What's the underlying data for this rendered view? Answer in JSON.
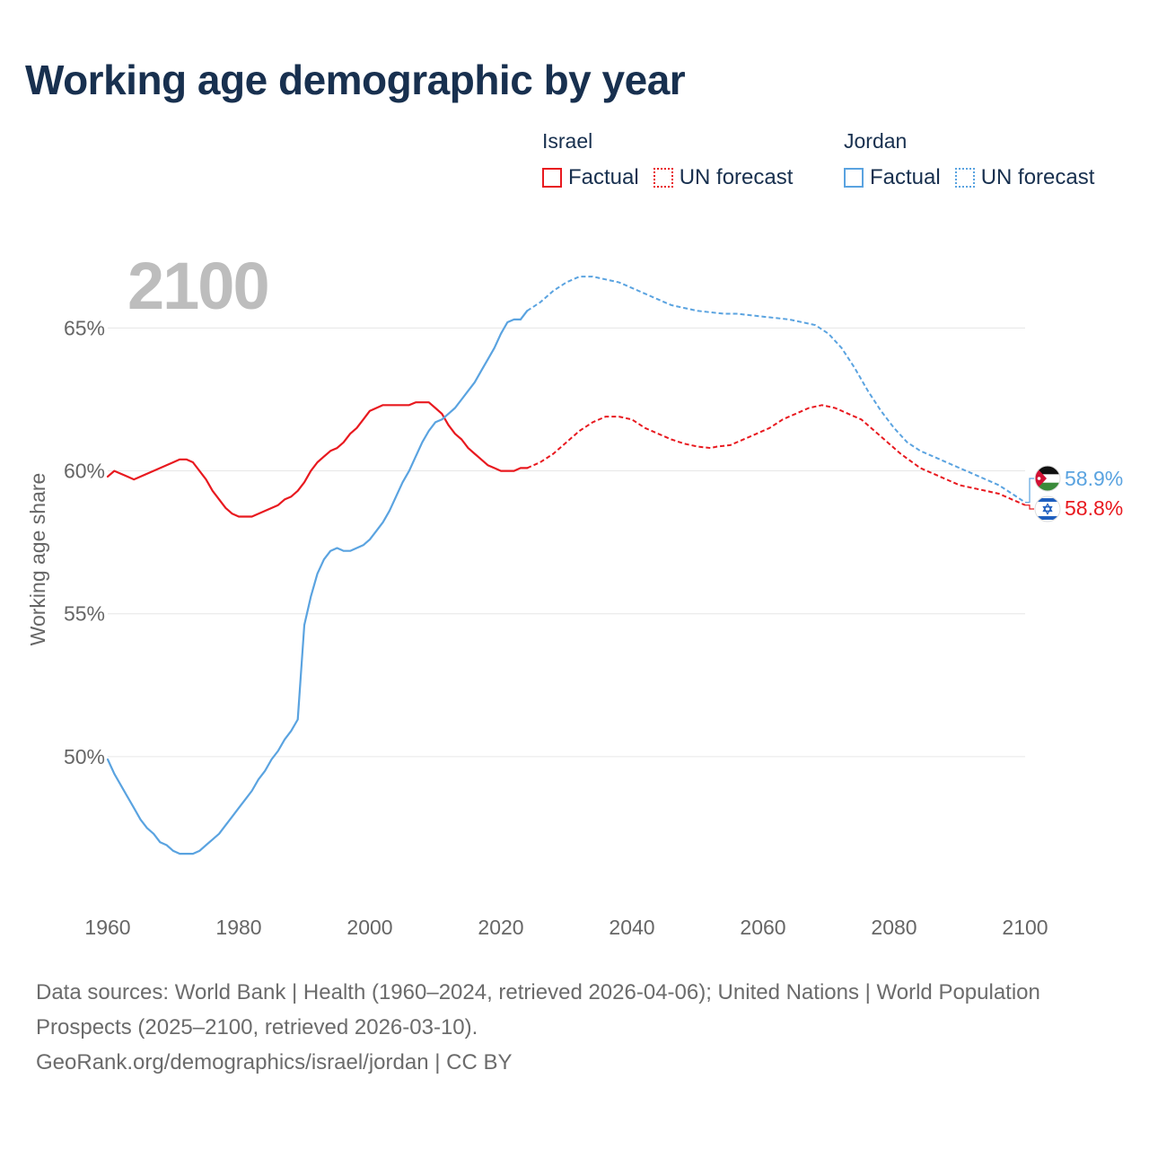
{
  "title": "Working age demographic by year",
  "legend": {
    "groups": [
      {
        "name": "Israel",
        "factual_label": "Factual",
        "forecast_label": "UN forecast",
        "color": "#e8191f"
      },
      {
        "name": "Jordan",
        "factual_label": "Factual",
        "forecast_label": "UN forecast",
        "color": "#5aa3e0"
      }
    ]
  },
  "year_watermark": "2100",
  "footer": {
    "line1": "Data sources: World Bank | Health (1960–2024, retrieved 2026-04-06); United Nations | World Population Prospects (2025–2100, retrieved 2026-03-10).",
    "line2": "GeoRank.org/demographics/israel/jordan | CC BY"
  },
  "end_labels": {
    "jordan": {
      "value": "58.9%",
      "icon": "jordan-flag-icon",
      "color": "#5aa3e0"
    },
    "israel": {
      "value": "58.8%",
      "icon": "israel-flag-icon",
      "color": "#e8191f"
    }
  },
  "chart_data": {
    "type": "line",
    "title": "Working age demographic by year",
    "xlabel": "",
    "ylabel": "Working age share",
    "xlim": [
      1960,
      2100
    ],
    "ylim": [
      45,
      68.5
    ],
    "x_ticks": [
      1960,
      1980,
      2000,
      2020,
      2040,
      2060,
      2080,
      2100
    ],
    "y_ticks": [
      50,
      55,
      60,
      65
    ],
    "y_tick_labels": [
      "50%",
      "55%",
      "60%",
      "65%"
    ],
    "grid": true,
    "series": [
      {
        "name": "Israel",
        "segment": "Factual",
        "color": "#e8191f",
        "style": "solid",
        "points": [
          [
            1960,
            59.8
          ],
          [
            1961,
            60
          ],
          [
            1962,
            59.9
          ],
          [
            1963,
            59.8
          ],
          [
            1964,
            59.7
          ],
          [
            1966,
            59.9
          ],
          [
            1968,
            60.1
          ],
          [
            1970,
            60.3
          ],
          [
            1971,
            60.4
          ],
          [
            1972,
            60.4
          ],
          [
            1973,
            60.3
          ],
          [
            1975,
            59.7
          ],
          [
            1976,
            59.3
          ],
          [
            1978,
            58.7
          ],
          [
            1979,
            58.5
          ],
          [
            1980,
            58.4
          ],
          [
            1982,
            58.4
          ],
          [
            1984,
            58.6
          ],
          [
            1986,
            58.8
          ],
          [
            1987,
            59
          ],
          [
            1988,
            59.1
          ],
          [
            1989,
            59.3
          ],
          [
            1990,
            59.6
          ],
          [
            1991,
            60
          ],
          [
            1992,
            60.3
          ],
          [
            1993,
            60.5
          ],
          [
            1994,
            60.7
          ],
          [
            1995,
            60.8
          ],
          [
            1996,
            61
          ],
          [
            1997,
            61.3
          ],
          [
            1998,
            61.5
          ],
          [
            1999,
            61.8
          ],
          [
            2000,
            62.1
          ],
          [
            2001,
            62.2
          ],
          [
            2002,
            62.3
          ],
          [
            2003,
            62.3
          ],
          [
            2006,
            62.3
          ],
          [
            2007,
            62.4
          ],
          [
            2009,
            62.4
          ],
          [
            2010,
            62.2
          ],
          [
            2011,
            62
          ],
          [
            2012,
            61.6
          ],
          [
            2013,
            61.3
          ],
          [
            2014,
            61.1
          ],
          [
            2015,
            60.8
          ],
          [
            2016,
            60.6
          ],
          [
            2017,
            60.4
          ],
          [
            2018,
            60.2
          ],
          [
            2019,
            60.1
          ],
          [
            2020,
            60
          ],
          [
            2022,
            60
          ],
          [
            2023,
            60.1
          ],
          [
            2024,
            60.1
          ]
        ]
      },
      {
        "name": "Israel",
        "segment": "UN forecast",
        "color": "#e8191f",
        "style": "dashed",
        "points": [
          [
            2024,
            60.1
          ],
          [
            2026,
            60.3
          ],
          [
            2028,
            60.6
          ],
          [
            2030,
            61
          ],
          [
            2032,
            61.4
          ],
          [
            2034,
            61.7
          ],
          [
            2036,
            61.9
          ],
          [
            2038,
            61.9
          ],
          [
            2040,
            61.8
          ],
          [
            2042,
            61.5
          ],
          [
            2044,
            61.3
          ],
          [
            2046,
            61.1
          ],
          [
            2048,
            60.95
          ],
          [
            2050,
            60.85
          ],
          [
            2052,
            60.8
          ],
          [
            2053,
            60.85
          ],
          [
            2055,
            60.9
          ],
          [
            2058,
            61.2
          ],
          [
            2061,
            61.5
          ],
          [
            2063,
            61.8
          ],
          [
            2065,
            62
          ],
          [
            2067,
            62.2
          ],
          [
            2069,
            62.3
          ],
          [
            2071,
            62.2
          ],
          [
            2073,
            62
          ],
          [
            2075,
            61.8
          ],
          [
            2077,
            61.4
          ],
          [
            2079,
            61
          ],
          [
            2081,
            60.6
          ],
          [
            2084,
            60.1
          ],
          [
            2087,
            59.8
          ],
          [
            2090,
            59.5
          ],
          [
            2093,
            59.35
          ],
          [
            2096,
            59.2
          ],
          [
            2098,
            59
          ],
          [
            2100,
            58.8
          ]
        ]
      },
      {
        "name": "Jordan",
        "segment": "Factual",
        "color": "#5aa3e0",
        "style": "solid",
        "points": [
          [
            1960,
            49.9
          ],
          [
            1961,
            49.4
          ],
          [
            1962,
            49
          ],
          [
            1963,
            48.6
          ],
          [
            1964,
            48.2
          ],
          [
            1965,
            47.8
          ],
          [
            1966,
            47.5
          ],
          [
            1967,
            47.3
          ],
          [
            1968,
            47
          ],
          [
            1969,
            46.9
          ],
          [
            1970,
            46.7
          ],
          [
            1971,
            46.6
          ],
          [
            1973,
            46.6
          ],
          [
            1974,
            46.7
          ],
          [
            1975,
            46.9
          ],
          [
            1976,
            47.1
          ],
          [
            1977,
            47.3
          ],
          [
            1978,
            47.6
          ],
          [
            1979,
            47.9
          ],
          [
            1980,
            48.2
          ],
          [
            1981,
            48.5
          ],
          [
            1982,
            48.8
          ],
          [
            1983,
            49.2
          ],
          [
            1984,
            49.5
          ],
          [
            1985,
            49.9
          ],
          [
            1986,
            50.2
          ],
          [
            1987,
            50.6
          ],
          [
            1988,
            50.9
          ],
          [
            1989,
            51.3
          ],
          [
            1990,
            54.6
          ],
          [
            1991,
            55.6
          ],
          [
            1992,
            56.4
          ],
          [
            1993,
            56.9
          ],
          [
            1994,
            57.2
          ],
          [
            1995,
            57.3
          ],
          [
            1996,
            57.2
          ],
          [
            1997,
            57.2
          ],
          [
            1998,
            57.3
          ],
          [
            1999,
            57.4
          ],
          [
            2000,
            57.6
          ],
          [
            2001,
            57.9
          ],
          [
            2002,
            58.2
          ],
          [
            2003,
            58.6
          ],
          [
            2004,
            59.1
          ],
          [
            2005,
            59.6
          ],
          [
            2006,
            60
          ],
          [
            2007,
            60.5
          ],
          [
            2008,
            61
          ],
          [
            2009,
            61.4
          ],
          [
            2010,
            61.7
          ],
          [
            2011,
            61.8
          ],
          [
            2012,
            62
          ],
          [
            2013,
            62.2
          ],
          [
            2014,
            62.5
          ],
          [
            2015,
            62.8
          ],
          [
            2016,
            63.1
          ],
          [
            2017,
            63.5
          ],
          [
            2018,
            63.9
          ],
          [
            2019,
            64.3
          ],
          [
            2020,
            64.8
          ],
          [
            2021,
            65.2
          ],
          [
            2022,
            65.3
          ],
          [
            2023,
            65.3
          ],
          [
            2024,
            65.6
          ]
        ]
      },
      {
        "name": "Jordan",
        "segment": "UN forecast",
        "color": "#5aa3e0",
        "style": "dashed",
        "points": [
          [
            2024,
            65.6
          ],
          [
            2026,
            65.9
          ],
          [
            2028,
            66.3
          ],
          [
            2030,
            66.6
          ],
          [
            2032,
            66.8
          ],
          [
            2034,
            66.8
          ],
          [
            2036,
            66.7
          ],
          [
            2038,
            66.6
          ],
          [
            2040,
            66.4
          ],
          [
            2042,
            66.2
          ],
          [
            2044,
            66
          ],
          [
            2046,
            65.8
          ],
          [
            2048,
            65.7
          ],
          [
            2050,
            65.6
          ],
          [
            2052,
            65.55
          ],
          [
            2054,
            65.5
          ],
          [
            2056,
            65.5
          ],
          [
            2058,
            65.45
          ],
          [
            2060,
            65.4
          ],
          [
            2062,
            65.35
          ],
          [
            2064,
            65.3
          ],
          [
            2066,
            65.2
          ],
          [
            2068,
            65.1
          ],
          [
            2070,
            64.8
          ],
          [
            2072,
            64.3
          ],
          [
            2074,
            63.6
          ],
          [
            2076,
            62.8
          ],
          [
            2078,
            62.1
          ],
          [
            2080,
            61.5
          ],
          [
            2082,
            61
          ],
          [
            2084,
            60.7
          ],
          [
            2086,
            60.5
          ],
          [
            2088,
            60.3
          ],
          [
            2090,
            60.1
          ],
          [
            2092,
            59.9
          ],
          [
            2094,
            59.7
          ],
          [
            2096,
            59.5
          ],
          [
            2098,
            59.2
          ],
          [
            2100,
            58.9
          ]
        ]
      }
    ]
  }
}
